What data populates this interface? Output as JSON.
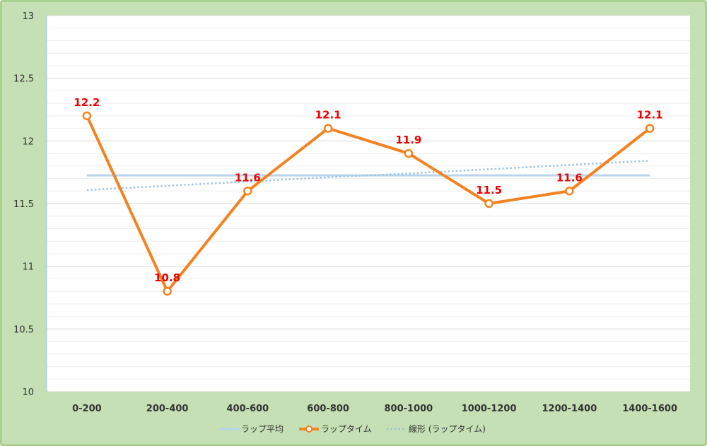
{
  "chart_data": {
    "type": "line",
    "categories": [
      "0-200",
      "200-400",
      "400-600",
      "600-800",
      "800-1000",
      "1000-1200",
      "1200-1400",
      "1400-1600"
    ],
    "ylim": [
      10,
      13
    ],
    "yticks": [
      "10",
      "10.5",
      "11",
      "11.5",
      "12",
      "12.5",
      "13"
    ],
    "grid": true,
    "legend_position": "bottom",
    "series": [
      {
        "name": "ラップタイム",
        "values": [
          12.2,
          10.8,
          11.6,
          12.1,
          11.9,
          11.5,
          11.6,
          12.1
        ],
        "labels": [
          "12.2",
          "10.8",
          "11.6",
          "12.1",
          "11.9",
          "11.5",
          "11.6",
          "12.1"
        ],
        "color": "#f58220",
        "style": "solid-markers"
      },
      {
        "name": "ラップ平均",
        "values": [
          11.725,
          11.725,
          11.725,
          11.725,
          11.725,
          11.725,
          11.725,
          11.725
        ],
        "color": "#b8d4ec",
        "style": "solid"
      },
      {
        "name": "線形 (ラップタイム)",
        "values": [
          11.608,
          11.642,
          11.676,
          11.71,
          11.74,
          11.774,
          11.808,
          11.842
        ],
        "color": "#9dc3e6",
        "style": "dotted"
      }
    ],
    "legend": [
      "ラップ平均",
      "ラップタイム",
      "線形 (ラップタイム)"
    ],
    "colors": {
      "frame": "#c5e0b4",
      "frame_border": "#a9d18e",
      "grid": "#e3e3e3",
      "axis": "#9dc3e6"
    }
  }
}
